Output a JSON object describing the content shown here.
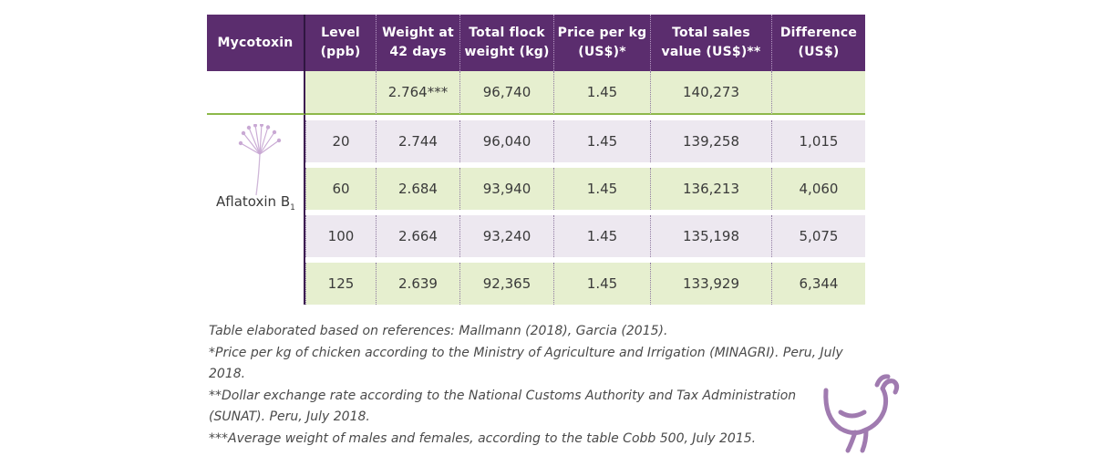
{
  "table": {
    "headers": [
      "Mycotoxin",
      "Level (ppb)",
      "Weight at 42 days",
      "Total flock weight (kg)",
      "Price per kg (US$)*",
      "Total sales value (US$)**",
      "Difference (US$)"
    ],
    "reference_row": [
      "",
      "2.764***",
      "96,740",
      "1.45",
      "140,273",
      ""
    ],
    "mycotoxin_label": "Aflatoxin B",
    "mycotoxin_subscript": "1",
    "rows": [
      [
        "20",
        "2.744",
        "96,040",
        "1.45",
        "139,258",
        "1,015"
      ],
      [
        "60",
        "2.684",
        "93,940",
        "1.45",
        "136,213",
        "4,060"
      ],
      [
        "100",
        "2.664",
        "93,240",
        "1.45",
        "135,198",
        "5,075"
      ],
      [
        "125",
        "2.639",
        "92,365",
        "1.45",
        "133,929",
        "6,344"
      ]
    ]
  },
  "notes": [
    "Table elaborated based on references: Mallmann (2018), Garcia (2015).",
    "*Price per kg of chicken according to the Ministry of Agriculture and Irrigation (MINAGRI). Peru, July 2018.",
    "**Dollar exchange rate according to the National Customs Authority and Tax Administration",
    "(SUNAT). Peru, July 2018.",
    "***Average weight of males and females, according to the table Cobb 500, July 2015."
  ],
  "icons": {
    "mycotoxin": "dandelion-icon",
    "footer": "chicken-icon"
  },
  "colors": {
    "header": "#5b2d6e",
    "green_row": "#e6efcf",
    "lavender_row": "#ede8f0",
    "accent_line": "#8db84a"
  }
}
